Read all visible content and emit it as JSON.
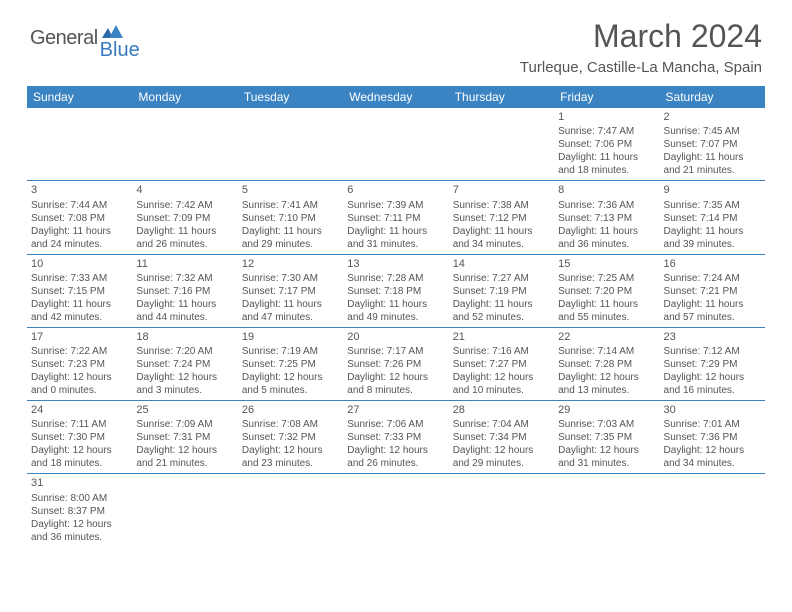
{
  "logo": {
    "general": "General",
    "blue": "Blue"
  },
  "title": "March 2024",
  "location": "Turleque, Castille-La Mancha, Spain",
  "colors": {
    "header_bg": "#3a84c4",
    "header_text": "#ffffff",
    "body_text": "#555555",
    "rule": "#3a84c4",
    "logo_blue": "#3a7bbf"
  },
  "typography": {
    "title_fontsize": 32,
    "location_fontsize": 15,
    "dayheader_fontsize": 12,
    "cell_fontsize": 10
  },
  "day_headers": [
    "Sunday",
    "Monday",
    "Tuesday",
    "Wednesday",
    "Thursday",
    "Friday",
    "Saturday"
  ],
  "weeks": [
    [
      null,
      null,
      null,
      null,
      null,
      {
        "n": "1",
        "sunrise": "Sunrise: 7:47 AM",
        "sunset": "Sunset: 7:06 PM",
        "day1": "Daylight: 11 hours",
        "day2": "and 18 minutes."
      },
      {
        "n": "2",
        "sunrise": "Sunrise: 7:45 AM",
        "sunset": "Sunset: 7:07 PM",
        "day1": "Daylight: 11 hours",
        "day2": "and 21 minutes."
      }
    ],
    [
      {
        "n": "3",
        "sunrise": "Sunrise: 7:44 AM",
        "sunset": "Sunset: 7:08 PM",
        "day1": "Daylight: 11 hours",
        "day2": "and 24 minutes."
      },
      {
        "n": "4",
        "sunrise": "Sunrise: 7:42 AM",
        "sunset": "Sunset: 7:09 PM",
        "day1": "Daylight: 11 hours",
        "day2": "and 26 minutes."
      },
      {
        "n": "5",
        "sunrise": "Sunrise: 7:41 AM",
        "sunset": "Sunset: 7:10 PM",
        "day1": "Daylight: 11 hours",
        "day2": "and 29 minutes."
      },
      {
        "n": "6",
        "sunrise": "Sunrise: 7:39 AM",
        "sunset": "Sunset: 7:11 PM",
        "day1": "Daylight: 11 hours",
        "day2": "and 31 minutes."
      },
      {
        "n": "7",
        "sunrise": "Sunrise: 7:38 AM",
        "sunset": "Sunset: 7:12 PM",
        "day1": "Daylight: 11 hours",
        "day2": "and 34 minutes."
      },
      {
        "n": "8",
        "sunrise": "Sunrise: 7:36 AM",
        "sunset": "Sunset: 7:13 PM",
        "day1": "Daylight: 11 hours",
        "day2": "and 36 minutes."
      },
      {
        "n": "9",
        "sunrise": "Sunrise: 7:35 AM",
        "sunset": "Sunset: 7:14 PM",
        "day1": "Daylight: 11 hours",
        "day2": "and 39 minutes."
      }
    ],
    [
      {
        "n": "10",
        "sunrise": "Sunrise: 7:33 AM",
        "sunset": "Sunset: 7:15 PM",
        "day1": "Daylight: 11 hours",
        "day2": "and 42 minutes."
      },
      {
        "n": "11",
        "sunrise": "Sunrise: 7:32 AM",
        "sunset": "Sunset: 7:16 PM",
        "day1": "Daylight: 11 hours",
        "day2": "and 44 minutes."
      },
      {
        "n": "12",
        "sunrise": "Sunrise: 7:30 AM",
        "sunset": "Sunset: 7:17 PM",
        "day1": "Daylight: 11 hours",
        "day2": "and 47 minutes."
      },
      {
        "n": "13",
        "sunrise": "Sunrise: 7:28 AM",
        "sunset": "Sunset: 7:18 PM",
        "day1": "Daylight: 11 hours",
        "day2": "and 49 minutes."
      },
      {
        "n": "14",
        "sunrise": "Sunrise: 7:27 AM",
        "sunset": "Sunset: 7:19 PM",
        "day1": "Daylight: 11 hours",
        "day2": "and 52 minutes."
      },
      {
        "n": "15",
        "sunrise": "Sunrise: 7:25 AM",
        "sunset": "Sunset: 7:20 PM",
        "day1": "Daylight: 11 hours",
        "day2": "and 55 minutes."
      },
      {
        "n": "16",
        "sunrise": "Sunrise: 7:24 AM",
        "sunset": "Sunset: 7:21 PM",
        "day1": "Daylight: 11 hours",
        "day2": "and 57 minutes."
      }
    ],
    [
      {
        "n": "17",
        "sunrise": "Sunrise: 7:22 AM",
        "sunset": "Sunset: 7:23 PM",
        "day1": "Daylight: 12 hours",
        "day2": "and 0 minutes."
      },
      {
        "n": "18",
        "sunrise": "Sunrise: 7:20 AM",
        "sunset": "Sunset: 7:24 PM",
        "day1": "Daylight: 12 hours",
        "day2": "and 3 minutes."
      },
      {
        "n": "19",
        "sunrise": "Sunrise: 7:19 AM",
        "sunset": "Sunset: 7:25 PM",
        "day1": "Daylight: 12 hours",
        "day2": "and 5 minutes."
      },
      {
        "n": "20",
        "sunrise": "Sunrise: 7:17 AM",
        "sunset": "Sunset: 7:26 PM",
        "day1": "Daylight: 12 hours",
        "day2": "and 8 minutes."
      },
      {
        "n": "21",
        "sunrise": "Sunrise: 7:16 AM",
        "sunset": "Sunset: 7:27 PM",
        "day1": "Daylight: 12 hours",
        "day2": "and 10 minutes."
      },
      {
        "n": "22",
        "sunrise": "Sunrise: 7:14 AM",
        "sunset": "Sunset: 7:28 PM",
        "day1": "Daylight: 12 hours",
        "day2": "and 13 minutes."
      },
      {
        "n": "23",
        "sunrise": "Sunrise: 7:12 AM",
        "sunset": "Sunset: 7:29 PM",
        "day1": "Daylight: 12 hours",
        "day2": "and 16 minutes."
      }
    ],
    [
      {
        "n": "24",
        "sunrise": "Sunrise: 7:11 AM",
        "sunset": "Sunset: 7:30 PM",
        "day1": "Daylight: 12 hours",
        "day2": "and 18 minutes."
      },
      {
        "n": "25",
        "sunrise": "Sunrise: 7:09 AM",
        "sunset": "Sunset: 7:31 PM",
        "day1": "Daylight: 12 hours",
        "day2": "and 21 minutes."
      },
      {
        "n": "26",
        "sunrise": "Sunrise: 7:08 AM",
        "sunset": "Sunset: 7:32 PM",
        "day1": "Daylight: 12 hours",
        "day2": "and 23 minutes."
      },
      {
        "n": "27",
        "sunrise": "Sunrise: 7:06 AM",
        "sunset": "Sunset: 7:33 PM",
        "day1": "Daylight: 12 hours",
        "day2": "and 26 minutes."
      },
      {
        "n": "28",
        "sunrise": "Sunrise: 7:04 AM",
        "sunset": "Sunset: 7:34 PM",
        "day1": "Daylight: 12 hours",
        "day2": "and 29 minutes."
      },
      {
        "n": "29",
        "sunrise": "Sunrise: 7:03 AM",
        "sunset": "Sunset: 7:35 PM",
        "day1": "Daylight: 12 hours",
        "day2": "and 31 minutes."
      },
      {
        "n": "30",
        "sunrise": "Sunrise: 7:01 AM",
        "sunset": "Sunset: 7:36 PM",
        "day1": "Daylight: 12 hours",
        "day2": "and 34 minutes."
      }
    ],
    [
      {
        "n": "31",
        "sunrise": "Sunrise: 8:00 AM",
        "sunset": "Sunset: 8:37 PM",
        "day1": "Daylight: 12 hours",
        "day2": "and 36 minutes."
      },
      null,
      null,
      null,
      null,
      null,
      null
    ]
  ]
}
